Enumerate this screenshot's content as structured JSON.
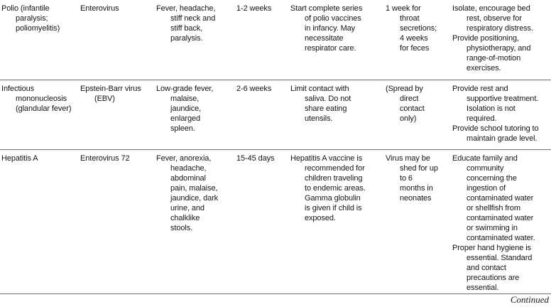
{
  "table": {
    "columns": [
      "disease",
      "agent",
      "symptoms",
      "incubation",
      "prevention",
      "communicability",
      "nursing_care"
    ],
    "rows": [
      {
        "disease": [
          "Polio (infantile paralysis; poliomyelitis)"
        ],
        "agent": [
          "Enterovirus"
        ],
        "symptoms": [
          "Fever, headache, stiff neck and stiff back, paralysis."
        ],
        "incubation": [
          "1-2 weeks"
        ],
        "prevention": [
          "Start complete series of polio vaccines in infancy. May necessitate respirator care."
        ],
        "communicability": [
          "1 week for throat secretions; 4 weeks for feces"
        ],
        "nursing_care": [
          "Isolate, encourage bed rest, observe for respiratory distress.",
          "Provide positioning, physiotherapy, and range-of-motion exercises."
        ]
      },
      {
        "disease": [
          "Infectious mononucleosis (glandular fever)"
        ],
        "agent": [
          "Epstein-Barr virus (EBV)"
        ],
        "symptoms": [
          "Low-grade fever, malaise, jaundice, enlarged spleen."
        ],
        "incubation": [
          "2-6 weeks"
        ],
        "prevention": [
          "Limit contact with saliva. Do not share eating utensils."
        ],
        "communicability": [
          "(Spread by direct contact only)"
        ],
        "nursing_care": [
          "Provide rest and supportive treatment. Isolation is not required.",
          "Provide school tutoring to maintain grade level."
        ]
      },
      {
        "disease": [
          "Hepatitis A"
        ],
        "agent": [
          "Enterovirus 72"
        ],
        "symptoms": [
          "Fever, anorexia, headache, abdominal pain, malaise, jaundice, dark urine, and chalklike stools."
        ],
        "incubation": [
          "15-45 days"
        ],
        "prevention": [
          "Hepatitis A vaccine is recommended for children traveling to endemic areas. Gamma globulin is given if child is exposed."
        ],
        "communicability": [
          "Virus may be shed for up to 6 months in neonates"
        ],
        "nursing_care": [
          "Educate family and community concerning the ingestion of contaminated water or shellfish from contaminated water or swimming in contaminated water.",
          "Proper hand hygiene is essential. Standard and contact precautions are essential."
        ]
      }
    ]
  },
  "footer": {
    "continued_label": "Continued"
  }
}
